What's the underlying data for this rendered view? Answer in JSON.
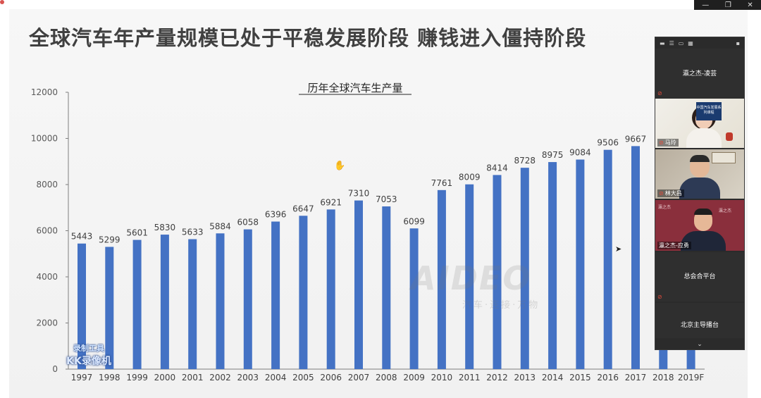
{
  "slide": {
    "title": "全球汽车年产量规模已处于平稳发展阶段 赚钱进入僵持阶段"
  },
  "chart_data": {
    "type": "bar",
    "title": "历年全球汽车生产量",
    "xlabel": "",
    "ylabel": "",
    "categories": [
      "1997",
      "1998",
      "1999",
      "2000",
      "2001",
      "2002",
      "2003",
      "2004",
      "2005",
      "2006",
      "2007",
      "2008",
      "2009",
      "2010",
      "2011",
      "2012",
      "2013",
      "2014",
      "2015",
      "2016",
      "2017",
      "2018",
      "2019F"
    ],
    "values": [
      5443,
      5299,
      5601,
      5830,
      5633,
      5884,
      6058,
      6396,
      6647,
      6921,
      7310,
      7053,
      6099,
      7761,
      8009,
      8414,
      8728,
      8975,
      9084,
      9506,
      9667,
      9570,
      9000
    ],
    "data_labels": [
      "5443",
      "5299",
      "5601",
      "5830",
      "5633",
      "5884",
      "6058",
      "6396",
      "6647",
      "6921",
      "7310",
      "7053",
      "6099",
      "7761",
      "8009",
      "8414",
      "8728",
      "8975",
      "9084",
      "9506",
      "9667",
      "",
      ""
    ],
    "y_ticks": [
      "0",
      "2000",
      "4000",
      "6000",
      "8000",
      "10000",
      "12000"
    ],
    "ylim": [
      0,
      12000
    ],
    "grid": false,
    "legend": "none",
    "bar_color": "#4472c4"
  },
  "watermark": {
    "brand": "AIDEO",
    "sub": "汽车·连接·万物"
  },
  "recorder": {
    "line1": "录制工具",
    "line2": "KK录像机"
  },
  "meeting": {
    "tiles": [
      {
        "name": "瀛之杰-凌芸",
        "mic_muted": true
      },
      {
        "name": "马玲",
        "mic_muted": true,
        "screen_text": "中国汽车发展系列课程",
        "backdrop_text": ""
      },
      {
        "name": "林大昌",
        "mic_muted": true,
        "screen_text": ""
      },
      {
        "name": "瀛之杰-应勇",
        "mic_muted": false,
        "backdrop_text": "瀛之杰"
      },
      {
        "name": "总会合平台",
        "mic_muted": true
      },
      {
        "name": "北京主导播台",
        "mic_muted": false
      }
    ]
  },
  "colors": {
    "accent": "#4472c4",
    "panel_bg": "#2b2b2b",
    "title": "#404040"
  }
}
